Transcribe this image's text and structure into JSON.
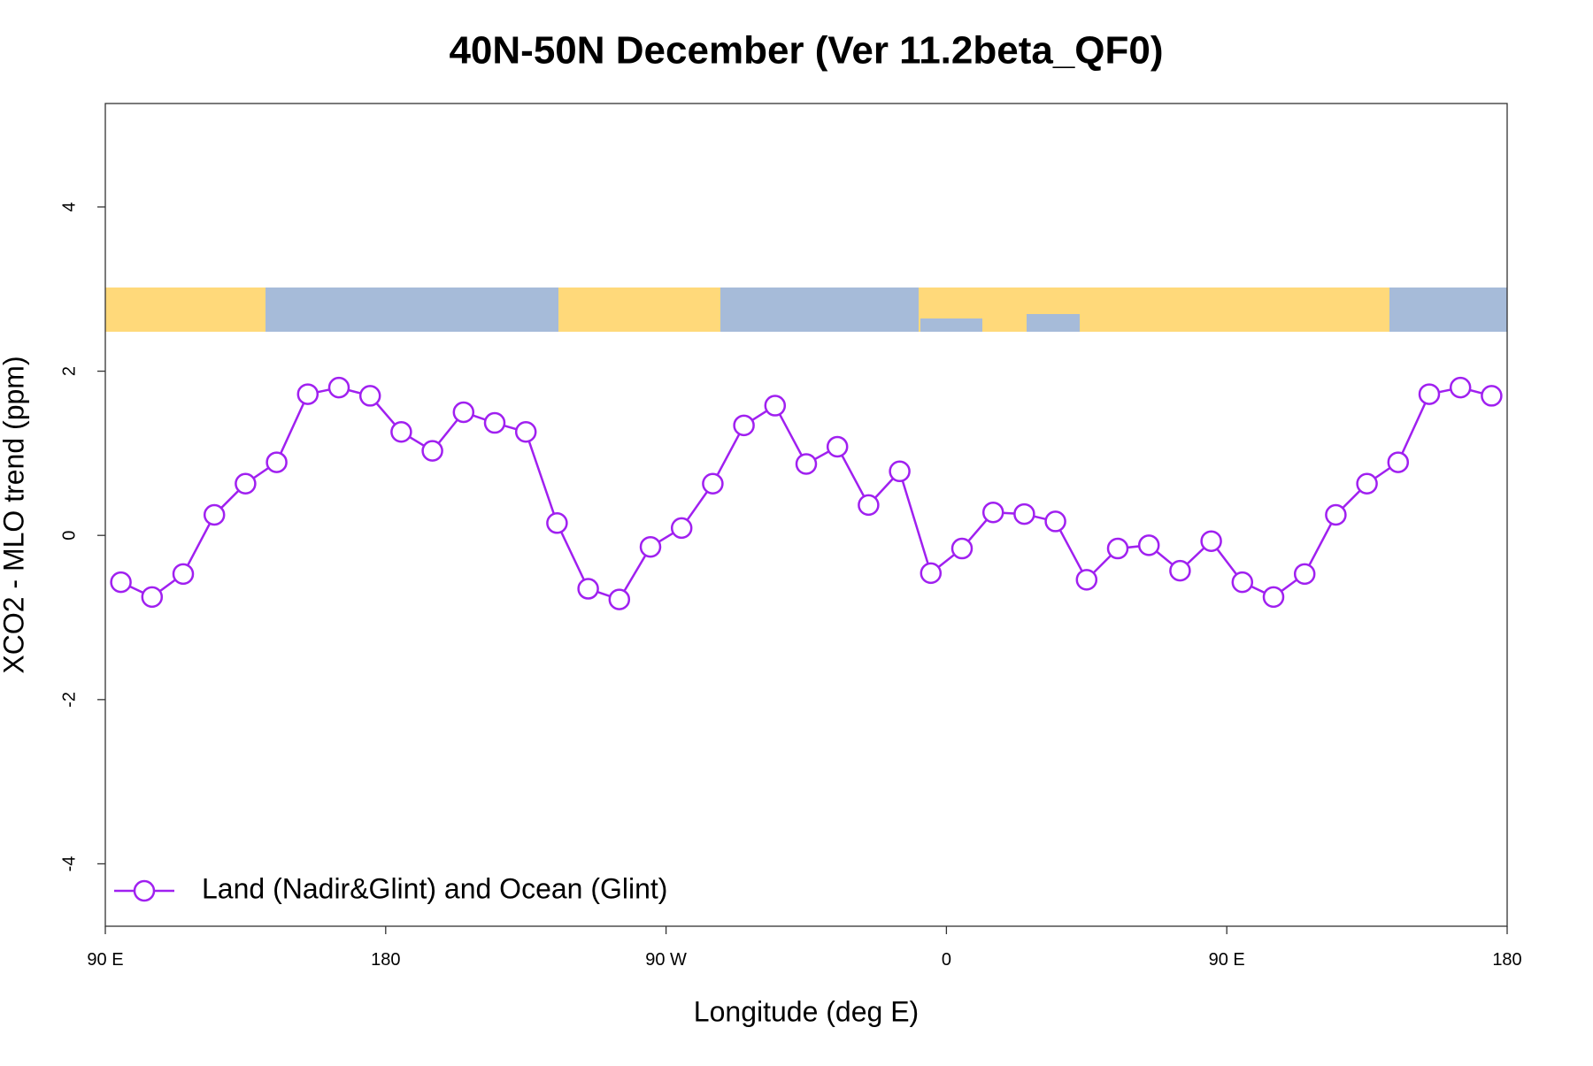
{
  "chart_data": {
    "type": "line",
    "title": "40N-50N December (Ver 11.2beta_QF0)",
    "x_label": "Longitude (deg E)",
    "y_label": "XCO2 - MLO trend (ppm)",
    "x": [
      95,
      105,
      115,
      125,
      135,
      145,
      155,
      165,
      175,
      185,
      195,
      205,
      215,
      225,
      235,
      245,
      255,
      265,
      275,
      285,
      295,
      305,
      315,
      325,
      335,
      345,
      355,
      365,
      375,
      385,
      395,
      405,
      415,
      425,
      435,
      445,
      455,
      465,
      475,
      485,
      495,
      505,
      515,
      525,
      535
    ],
    "series": [
      {
        "name": "Land (Nadir&Glint) and Ocean (Glint)",
        "color": "#a020f0",
        "values": [
          -0.57,
          -0.75,
          -0.47,
          0.25,
          0.63,
          0.89,
          1.72,
          1.8,
          1.7,
          1.26,
          1.03,
          1.5,
          1.37,
          1.26,
          0.15,
          -0.65,
          -0.78,
          -0.14,
          0.09,
          0.63,
          1.34,
          1.58,
          0.87,
          1.08,
          0.37,
          0.78,
          -0.46,
          -0.16,
          0.28,
          0.26,
          0.17,
          -0.54,
          -0.16,
          -0.12,
          -0.43,
          -0.07,
          -0.57,
          -0.75,
          -0.47,
          0.25,
          0.63,
          0.89,
          1.72,
          1.8,
          1.7
        ]
      }
    ],
    "xlim": [
      90,
      540
    ],
    "xticks": [
      {
        "value": 90,
        "label": "90 E"
      },
      {
        "value": 180,
        "label": "180"
      },
      {
        "value": 270,
        "label": "90 W"
      },
      {
        "value": 360,
        "label": "0"
      },
      {
        "value": 450,
        "label": "90 E"
      },
      {
        "value": 540,
        "label": "180"
      }
    ],
    "ylim": [
      -4.76,
      5.26
    ],
    "yticks": [
      -4,
      -2,
      0,
      2,
      4
    ],
    "legend": "bottomleft"
  }
}
